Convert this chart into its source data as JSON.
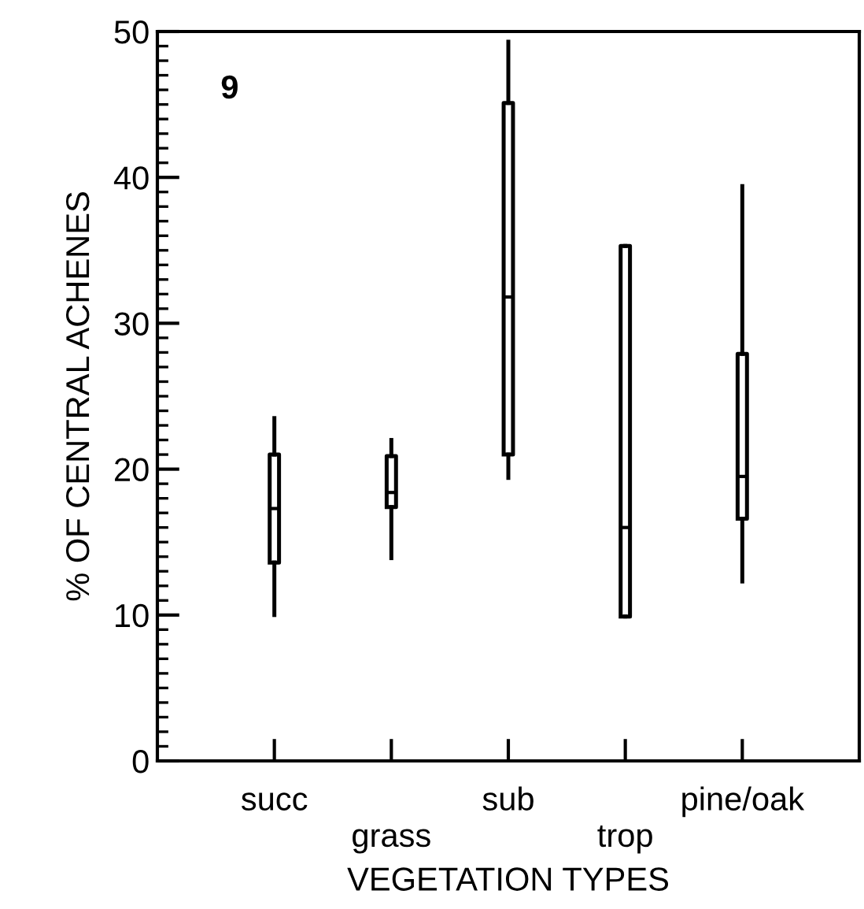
{
  "chart_data": {
    "type": "box",
    "xlabel": "VEGETATION TYPES",
    "ylabel": "% OF CENTRAL ACHENES",
    "categories": [
      "succ",
      "grass",
      "sub",
      "trop",
      "pine/oak"
    ],
    "boxes": [
      {
        "low": 10.0,
        "q1": 13.6,
        "median": 17.3,
        "q3": 21.0,
        "high": 23.5
      },
      {
        "low": 13.9,
        "q1": 17.4,
        "median": 18.4,
        "q3": 20.9,
        "high": 22.0
      },
      {
        "low": 19.4,
        "q1": 21.0,
        "median": 31.8,
        "q3": 45.1,
        "high": 49.3
      },
      {
        "low": 9.9,
        "q1": 9.9,
        "median": 16.0,
        "q3": 35.3,
        "high": 35.3
      },
      {
        "low": 12.3,
        "q1": 16.6,
        "median": 19.5,
        "q3": 27.9,
        "high": 39.4
      }
    ],
    "color": "#000000",
    "ylim": [
      0,
      50
    ],
    "yticks": [
      0,
      10,
      20,
      30,
      40,
      50
    ],
    "annotations": [
      "9"
    ],
    "grid": false,
    "legend": false
  }
}
